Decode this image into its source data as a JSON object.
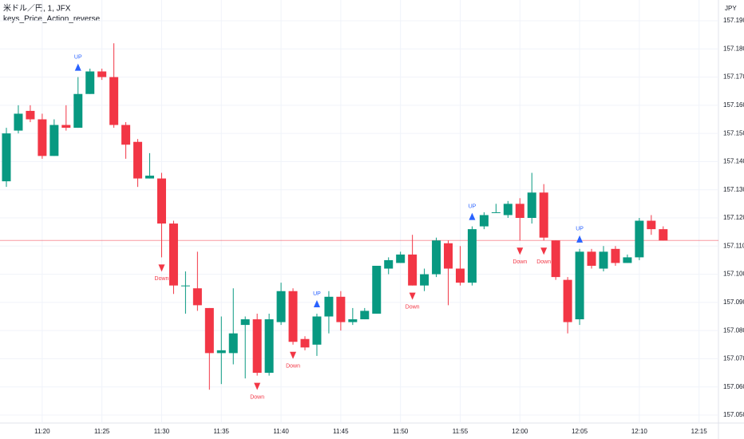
{
  "chart_data": {
    "type": "candlestick",
    "title": "米ドル／円, 1, JFX",
    "subtitle": "keys_Price_Action_reverse",
    "y_axis_label": "JPY",
    "categories": [
      null,
      null,
      null,
      "11:20",
      null,
      null,
      null,
      null,
      "11:25",
      null,
      null,
      null,
      null,
      "11:30",
      null,
      null,
      null,
      null,
      "11:35",
      null,
      null,
      null,
      null,
      "11:40",
      null,
      null,
      null,
      null,
      "11:45",
      null,
      null,
      null,
      null,
      "11:50",
      null,
      null,
      null,
      null,
      "11:55",
      null,
      null,
      null,
      null,
      "12:00",
      null,
      null,
      null,
      null,
      "12:05",
      null,
      null,
      null,
      null,
      "12:10",
      null,
      null,
      null,
      null,
      "12:15"
    ],
    "open": [
      157.133,
      157.151,
      157.158,
      157.155,
      157.142,
      157.153,
      157.152,
      157.164,
      157.172,
      157.17,
      157.153,
      157.147,
      157.134,
      157.134,
      157.118,
      157.096,
      157.095,
      157.088,
      157.072,
      157.072,
      157.082,
      157.084,
      157.065,
      157.083,
      157.094,
      157.077,
      157.075,
      157.085,
      157.092,
      157.083,
      157.084,
      157.086,
      157.102,
      157.104,
      157.107,
      157.096,
      157.1,
      157.111,
      157.102,
      157.097,
      157.117,
      157.122,
      157.121,
      157.125,
      157.12,
      157.129,
      157.112,
      157.098,
      157.084,
      157.108,
      157.102,
      157.109,
      157.104,
      157.106,
      157.119,
      157.116,
      null,
      null,
      null
    ],
    "high": [
      157.152,
      157.16,
      157.16,
      157.157,
      157.155,
      157.16,
      157.17,
      157.173,
      157.173,
      157.182,
      157.154,
      157.148,
      157.143,
      157.136,
      157.119,
      157.101,
      157.108,
      157.088,
      157.085,
      157.095,
      157.085,
      157.086,
      157.086,
      157.097,
      157.095,
      157.078,
      157.086,
      157.094,
      157.094,
      157.088,
      157.088,
      157.103,
      157.106,
      157.108,
      157.114,
      157.102,
      157.113,
      157.112,
      157.11,
      157.117,
      157.122,
      157.125,
      157.126,
      157.127,
      157.136,
      157.132,
      157.112,
      157.099,
      157.109,
      157.109,
      157.11,
      157.11,
      157.107,
      157.12,
      157.121,
      157.117,
      null,
      null,
      null
    ],
    "low": [
      157.131,
      157.15,
      157.154,
      157.141,
      157.142,
      157.151,
      157.152,
      157.164,
      157.169,
      157.152,
      157.141,
      157.131,
      157.134,
      157.106,
      157.093,
      157.086,
      157.087,
      157.059,
      157.061,
      157.068,
      157.063,
      157.064,
      157.064,
      157.082,
      157.075,
      157.073,
      157.071,
      157.079,
      157.08,
      157.082,
      157.084,
      157.086,
      157.1,
      157.104,
      157.096,
      157.094,
      157.099,
      157.089,
      157.096,
      157.096,
      157.116,
      157.122,
      157.12,
      157.112,
      157.118,
      157.112,
      157.098,
      157.079,
      157.082,
      157.102,
      157.101,
      157.103,
      157.104,
      157.105,
      157.114,
      157.112,
      null,
      null,
      null
    ],
    "close": [
      157.15,
      157.157,
      157.155,
      157.142,
      157.153,
      157.152,
      157.164,
      157.172,
      157.17,
      157.153,
      157.146,
      157.134,
      157.135,
      157.118,
      157.096,
      157.096,
      157.089,
      157.072,
      157.073,
      157.079,
      157.084,
      157.065,
      157.084,
      157.094,
      157.076,
      157.074,
      157.085,
      157.092,
      157.083,
      157.084,
      157.087,
      157.103,
      157.105,
      157.107,
      157.096,
      157.1,
      157.112,
      157.102,
      157.097,
      157.116,
      157.121,
      157.122,
      157.125,
      157.12,
      157.129,
      157.113,
      157.099,
      157.083,
      157.108,
      157.103,
      157.108,
      157.104,
      157.106,
      157.119,
      157.116,
      157.112,
      null,
      null,
      null
    ],
    "signals": [
      null,
      null,
      null,
      null,
      null,
      null,
      "UP",
      null,
      null,
      null,
      null,
      null,
      null,
      "Down",
      null,
      null,
      null,
      null,
      null,
      null,
      null,
      "Down",
      null,
      null,
      "Down",
      null,
      "UP",
      null,
      null,
      null,
      null,
      null,
      null,
      null,
      "Down",
      null,
      null,
      null,
      null,
      "UP",
      null,
      null,
      null,
      "Down",
      null,
      "Down",
      null,
      null,
      "UP",
      null,
      null,
      null,
      null,
      null,
      null,
      null,
      null,
      null,
      null
    ],
    "up_color": "#089981",
    "down_color": "#f23645",
    "signal_up_color": "#2962ff",
    "signal_down_color": "#f23645",
    "price_line": 157.112,
    "ylim": [
      157.05,
      157.19
    ],
    "yticks": [
      {
        "value": 157.05,
        "label": "157.050"
      },
      {
        "value": 157.06,
        "label": "157.060"
      },
      {
        "value": 157.07,
        "label": "157.070"
      },
      {
        "value": 157.08,
        "label": "157.080"
      },
      {
        "value": 157.09,
        "label": "157.090"
      },
      {
        "value": 157.1,
        "label": "157.100"
      },
      {
        "value": 157.11,
        "label": "157.110"
      },
      {
        "value": 157.12,
        "label": "157.120"
      },
      {
        "value": 157.13,
        "label": "157.130"
      },
      {
        "value": 157.14,
        "label": "157.140"
      },
      {
        "value": 157.15,
        "label": "157.150"
      },
      {
        "value": 157.16,
        "label": "157.160"
      },
      {
        "value": 157.17,
        "label": "157.170"
      },
      {
        "value": 157.18,
        "label": "157.180"
      },
      {
        "value": 157.19,
        "label": "157.190"
      }
    ],
    "grid": true
  }
}
